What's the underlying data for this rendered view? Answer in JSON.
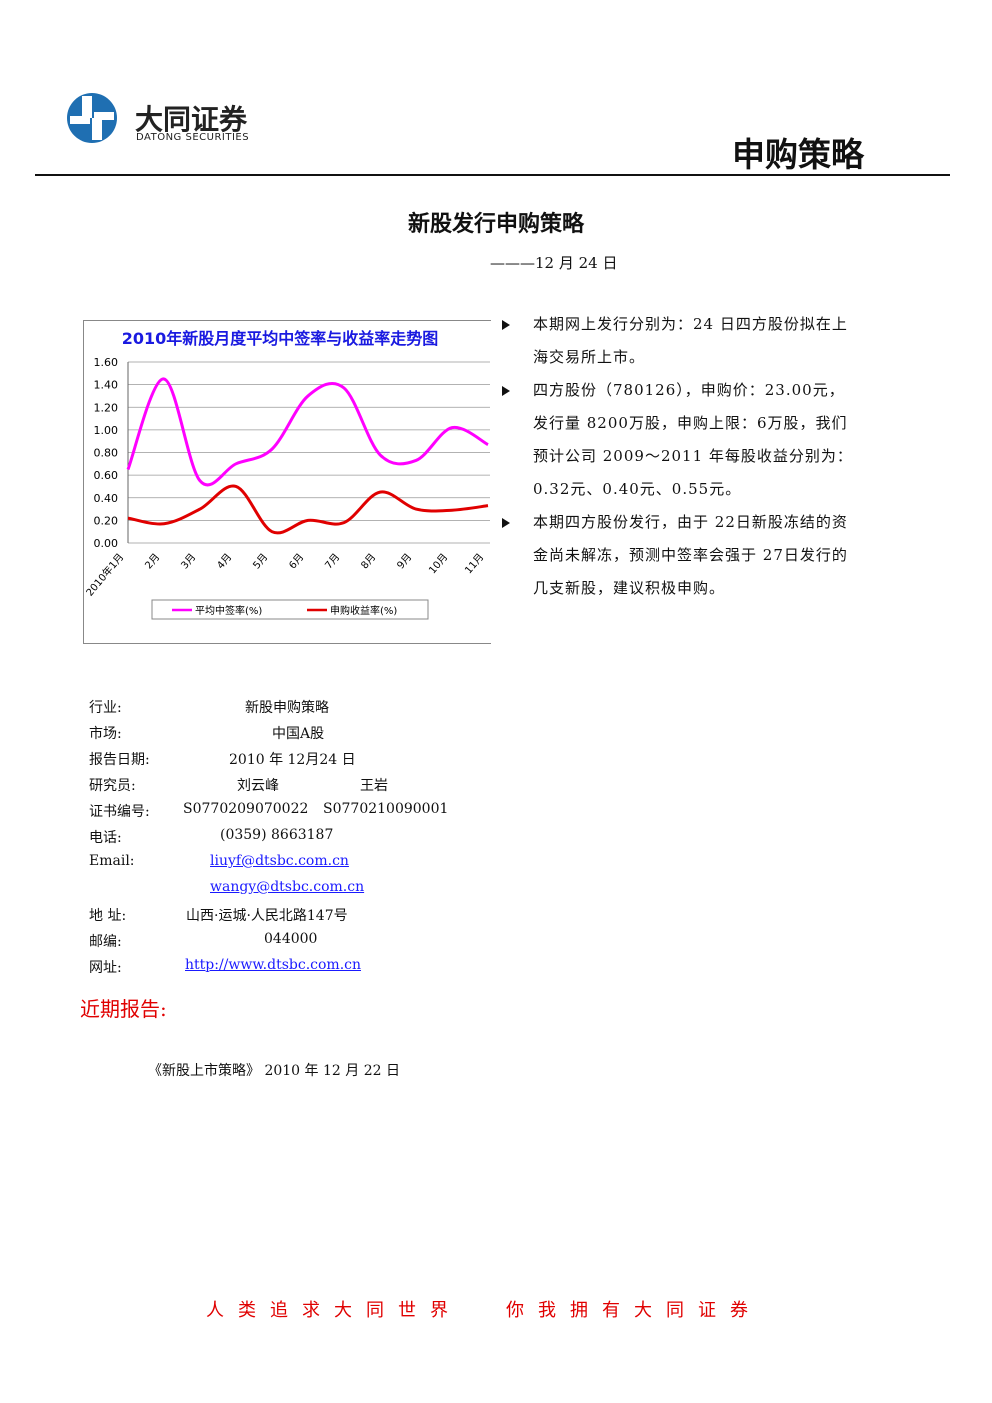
{
  "header": {
    "brand": "大同证券",
    "brand_en": "DATONG SECURITIES",
    "section": "申购策略"
  },
  "title": "新股发行申购策略",
  "date": "———12 月 24 日",
  "bullets": [
    "本期网上发行分别为：24 日四方股份拟在上海交易所上市。",
    "四方股份（780126），申购价：23.00元，发行量 8200万股，申购上限：6万股，我们预计公司 2009～2011 年每股收益分别为：0.32元、0.40元、0.55元。",
    "本期四方股份发行，由于 22日新股冻结的资金尚未解冻，预测中签率会强于 27日发行的几支新股，建议积极申购。"
  ],
  "chart_data": {
    "type": "line",
    "title": "2010年新股月度平均中签率与收益率走势图",
    "categories": [
      "2010年1月",
      "2月",
      "3月",
      "4月",
      "5月",
      "6月",
      "7月",
      "8月",
      "9月",
      "10月",
      "11月"
    ],
    "series": [
      {
        "name": "平均中签率(%)",
        "color": "#ff00ff",
        "values": [
          0.65,
          1.45,
          0.55,
          0.7,
          0.83,
          1.3,
          1.37,
          0.78,
          0.73,
          1.02,
          0.87
        ]
      },
      {
        "name": "申购收益率(%)",
        "color": "#e00000",
        "values": [
          0.22,
          0.17,
          0.3,
          0.5,
          0.1,
          0.2,
          0.18,
          0.45,
          0.3,
          0.29,
          0.33
        ]
      }
    ],
    "ylim": [
      0,
      1.6
    ],
    "yticks": [
      {
        "value": 0,
        "label": "0.00"
      },
      {
        "value": 0.2,
        "label": "0.20"
      },
      {
        "value": 0.4,
        "label": "0.40"
      },
      {
        "value": 0.6,
        "label": "0.60"
      },
      {
        "value": 0.8,
        "label": "0.80"
      },
      {
        "value": 1,
        "label": "1.00"
      },
      {
        "value": 1.2,
        "label": "1.20"
      },
      {
        "value": 1.4,
        "label": "1.40"
      },
      {
        "value": 1.6,
        "label": "1.60"
      }
    ],
    "grid": true
  },
  "info": [
    {
      "label": "行业:",
      "values": [
        "新股申购策略"
      ]
    },
    {
      "label": "市场:",
      "values": [
        "中国A股"
      ]
    },
    {
      "label": "报告日期:",
      "values": [
        "2010 年 12月24 日"
      ]
    },
    {
      "label": "研究员:",
      "values": [
        "刘云峰",
        "王岩"
      ]
    },
    {
      "label": "证书编号:",
      "values": [
        "S0770209070022",
        "S0770210090001"
      ]
    },
    {
      "label": "电话:",
      "values": [
        "(0359) 8663187"
      ]
    },
    {
      "label": "Email:",
      "values": [
        "liuyf@dtsbc.com.cn",
        "wangy@dtsbc.com.cn"
      ]
    },
    {
      "label": "地 址:",
      "values": [
        "山西·运城·人民北路147号"
      ]
    },
    {
      "label": "邮编:",
      "values": [
        "044000"
      ]
    },
    {
      "label": "网址:",
      "values": [
        "http://www.dtsbc.com.cn"
      ]
    }
  ],
  "recent": {
    "heading": "近期报告:",
    "items": [
      "《新股上市策略》 2010 年 12 月 22 日"
    ]
  },
  "footer": {
    "slogan": [
      "人类追求大同世界",
      "你我拥有大同证券"
    ]
  }
}
